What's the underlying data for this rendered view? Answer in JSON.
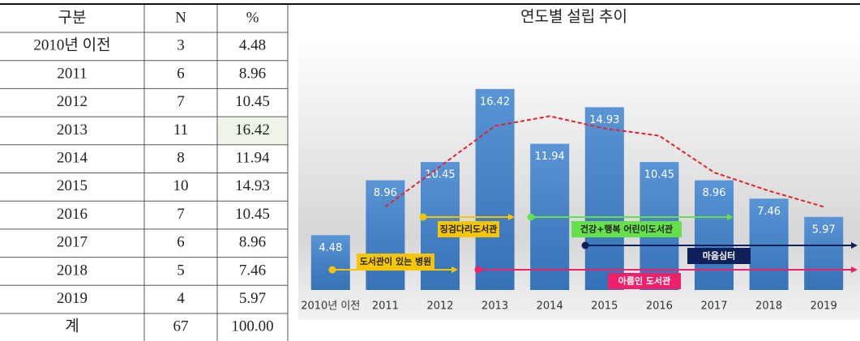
{
  "table": {
    "header": [
      "구분",
      "N",
      "%"
    ],
    "rows": [
      [
        "2010년 이전",
        "3",
        "4.48"
      ],
      [
        "2011",
        "6",
        "8.96"
      ],
      [
        "2012",
        "7",
        "10.45"
      ],
      [
        "2013",
        "11",
        "16.42"
      ],
      [
        "2014",
        "8",
        "11.94"
      ],
      [
        "2015",
        "10",
        "14.93"
      ],
      [
        "2016",
        "7",
        "10.45"
      ],
      [
        "2017",
        "6",
        "8.96"
      ],
      [
        "2018",
        "5",
        "7.46"
      ],
      [
        "2019",
        "4",
        "5.97"
      ],
      [
        "계",
        "67",
        "100.00"
      ]
    ],
    "highlight_color": "#eef5e6"
  },
  "chart_data": {
    "type": "bar",
    "title": "연도별 설립 추이",
    "categories": [
      "2010년 이전",
      "2011",
      "2012",
      "2013",
      "2014",
      "2015",
      "2016",
      "2017",
      "2018",
      "2019"
    ],
    "values": [
      4.48,
      8.96,
      10.45,
      16.42,
      11.94,
      14.93,
      10.45,
      8.96,
      7.46,
      5.97
    ],
    "color": "#3d82cf",
    "ylim": [
      0,
      18
    ],
    "trend": {
      "color": "#e8202a",
      "values": [
        null,
        6.8,
        10.1,
        13.4,
        14.2,
        13.2,
        12.6,
        9.6,
        8.1,
        6.8
      ]
    },
    "annotations": [
      {
        "label": "도서관이 있는 병원",
        "color": "#f7c600",
        "text_color": "#222"
      },
      {
        "label": "징검다리도서관",
        "color": "#f7c600",
        "text_color": "#222"
      },
      {
        "label": "건강+행복 어린이도서관",
        "color": "#66e04a",
        "text_color": "#222"
      },
      {
        "label": "마음심터",
        "color": "#10205a",
        "text_color": "#fff"
      },
      {
        "label": "아름인 도서관",
        "color": "#f0206a",
        "text_color": "#fff"
      }
    ]
  }
}
